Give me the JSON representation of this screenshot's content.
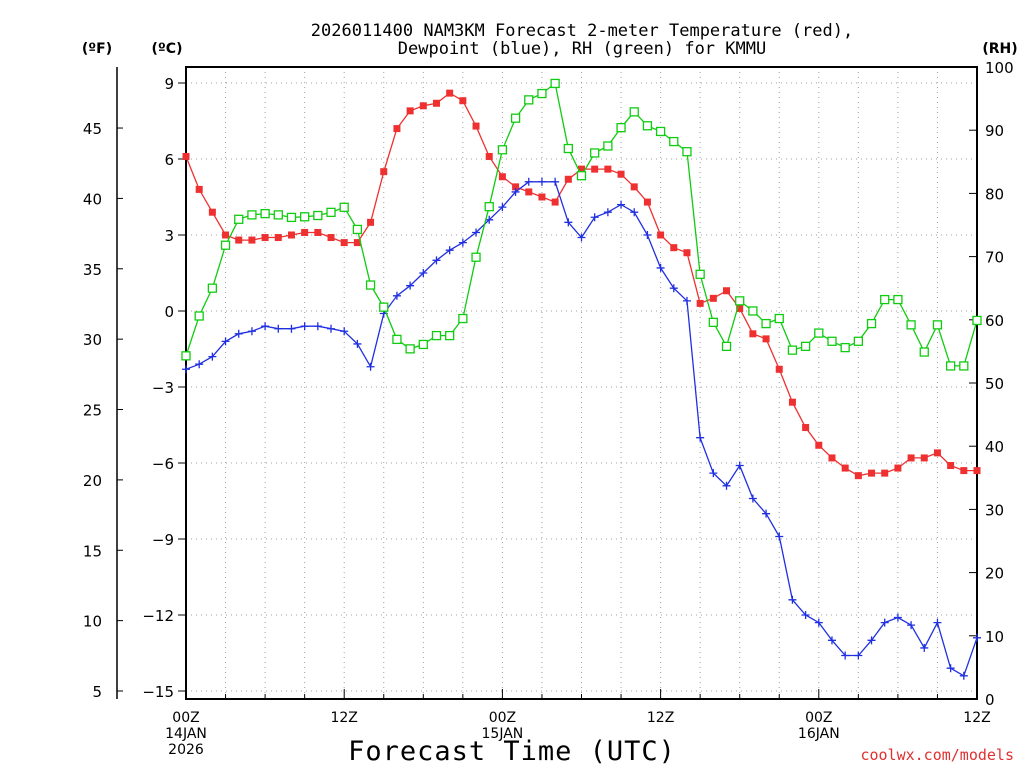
{
  "chart_data": {
    "type": "line",
    "title_line1": "2026011400 NAM3KM Forecast 2-meter Temperature (red),",
    "title_line2": "Dewpoint (blue), RH (green) for KMMU",
    "xlabel": "Forecast Time (UTC)",
    "credit": "coolwx.com/models",
    "units": {
      "fahrenheit": "(ºF)",
      "celsius": "(ºC)",
      "rh": "(RH)"
    },
    "x_ticks": [
      {
        "hour": 0,
        "lines": [
          "00Z",
          "14JAN",
          "2026"
        ]
      },
      {
        "hour": 12,
        "lines": [
          "12Z"
        ]
      },
      {
        "hour": 24,
        "lines": [
          "00Z",
          "15JAN"
        ]
      },
      {
        "hour": 36,
        "lines": [
          "12Z"
        ]
      },
      {
        "hour": 48,
        "lines": [
          "00Z",
          "16JAN"
        ]
      },
      {
        "hour": 60,
        "lines": [
          "12Z"
        ]
      }
    ],
    "xlim": [
      0,
      60
    ],
    "ylim_celsius": [
      -15,
      9
    ],
    "ylim_rh": [
      0,
      100
    ],
    "celsius_ticks": [
      9,
      6,
      3,
      0,
      -3,
      -6,
      -9,
      -12,
      -15
    ],
    "fahrenheit_ticks": [
      45,
      40,
      35,
      30,
      25,
      20,
      15,
      10,
      5
    ],
    "rh_ticks": [
      100,
      90,
      80,
      70,
      60,
      50,
      40,
      30,
      20,
      10,
      0
    ],
    "colors": {
      "temperature": "#ee3030",
      "dewpoint": "#2030e0",
      "rh": "#10cc10",
      "grid": "#a0a0a0"
    },
    "series": [
      {
        "name": "Temperature",
        "units": "celsius",
        "values": [
          6.1,
          4.8,
          3.9,
          3.0,
          2.8,
          2.8,
          2.9,
          2.9,
          3.0,
          3.1,
          3.1,
          2.9,
          2.7,
          2.7,
          3.5,
          5.5,
          7.2,
          7.9,
          8.1,
          8.2,
          8.6,
          8.3,
          7.3,
          6.1,
          5.3,
          4.9,
          4.7,
          4.5,
          4.3,
          5.2,
          5.6,
          5.6,
          5.6,
          5.4,
          4.9,
          4.3,
          3.0,
          2.5,
          2.3,
          0.3,
          0.5,
          0.8,
          0.1,
          -0.9,
          -1.1,
          -2.3,
          -3.6,
          -4.6,
          -5.3,
          -5.8,
          -6.2,
          -6.5,
          -6.4,
          -6.4,
          -6.2,
          -5.8,
          -5.8,
          -5.6,
          -6.1,
          -6.3,
          -6.3
        ]
      },
      {
        "name": "Dewpoint",
        "units": "celsius",
        "values": [
          -2.3,
          -2.1,
          -1.8,
          -1.2,
          -0.9,
          -0.8,
          -0.6,
          -0.7,
          -0.7,
          -0.6,
          -0.6,
          -0.7,
          -0.8,
          -1.3,
          -2.2,
          -0.1,
          0.6,
          1.0,
          1.5,
          2.0,
          2.4,
          2.7,
          3.1,
          3.6,
          4.1,
          4.7,
          5.1,
          5.1,
          5.1,
          3.5,
          2.9,
          3.7,
          3.9,
          4.2,
          3.9,
          3.0,
          1.7,
          0.9,
          0.4,
          -5.0,
          -6.4,
          -6.9,
          -6.1,
          -7.4,
          -8.0,
          -8.9,
          -11.4,
          -12.0,
          -12.3,
          -13.0,
          -13.6,
          -13.6,
          -13.0,
          -12.3,
          -12.1,
          -12.4,
          -13.3,
          -12.3,
          -14.1,
          -14.4,
          -12.9
        ]
      },
      {
        "name": "RH",
        "units": "percent",
        "values": [
          54.3,
          60.6,
          65.0,
          71.8,
          75.9,
          76.6,
          76.8,
          76.6,
          76.2,
          76.3,
          76.5,
          77.0,
          77.8,
          74.3,
          65.5,
          62.0,
          56.9,
          55.4,
          56.1,
          57.5,
          57.5,
          60.2,
          69.9,
          77.9,
          86.9,
          91.9,
          94.8,
          95.8,
          97.4,
          87.1,
          82.8,
          86.4,
          87.5,
          90.4,
          92.9,
          90.7,
          89.8,
          88.2,
          86.6,
          67.2,
          59.6,
          55.8,
          63.0,
          61.4,
          59.4,
          60.2,
          55.2,
          55.8,
          57.9,
          56.6,
          55.6,
          56.6,
          59.4,
          63.2,
          63.2,
          59.2,
          54.9,
          59.2,
          52.7,
          52.7,
          59.9
        ]
      }
    ]
  }
}
